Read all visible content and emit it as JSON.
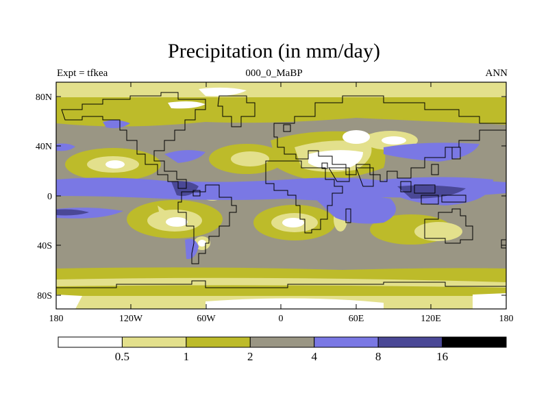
{
  "title": "Precipitation (in mm/day)",
  "subtitle_left": "Expt = tfkea",
  "subtitle_center": "000_0_MaBP",
  "subtitle_right": "ANN",
  "lat_labels": [
    "80N",
    "40N",
    "0",
    "40S",
    "80S"
  ],
  "lon_labels": [
    "180",
    "120W",
    "60W",
    "0",
    "60E",
    "120E",
    "180"
  ],
  "colorbar": {
    "levels": [
      "0.5",
      "1",
      "2",
      "4",
      "8",
      "16"
    ],
    "colors": [
      "#ffffff",
      "#e3e08c",
      "#bdbb2a",
      "#9a9684",
      "#7a78e4",
      "#4a4896",
      "#000000"
    ]
  }
}
